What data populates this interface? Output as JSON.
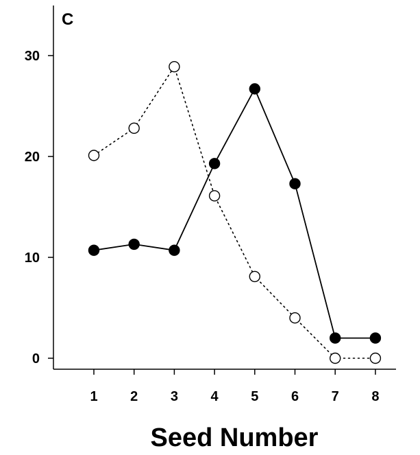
{
  "chart_data": {
    "type": "line",
    "panel_label": "C",
    "title": "",
    "xlabel": "Seed Number",
    "ylabel": "",
    "x": [
      1,
      2,
      3,
      4,
      5,
      6,
      7,
      8
    ],
    "xticks": [
      "1",
      "2",
      "3",
      "4",
      "5",
      "6",
      "7",
      "8"
    ],
    "yticks": [
      "0",
      "10",
      "20",
      "30"
    ],
    "ylim": [
      -1,
      35
    ],
    "xlim": [
      0,
      9
    ],
    "grid": false,
    "legend": "none",
    "series": [
      {
        "style": "solid-line-filled-circle",
        "color": "#000000",
        "values": [
          10.7,
          11.3,
          10.7,
          19.3,
          26.7,
          17.3,
          2.0,
          2.0
        ]
      },
      {
        "style": "dotted-line-open-circle",
        "color": "#000000",
        "values": [
          20.1,
          22.8,
          28.9,
          16.1,
          8.1,
          4.0,
          0.0,
          0.0
        ]
      }
    ]
  }
}
